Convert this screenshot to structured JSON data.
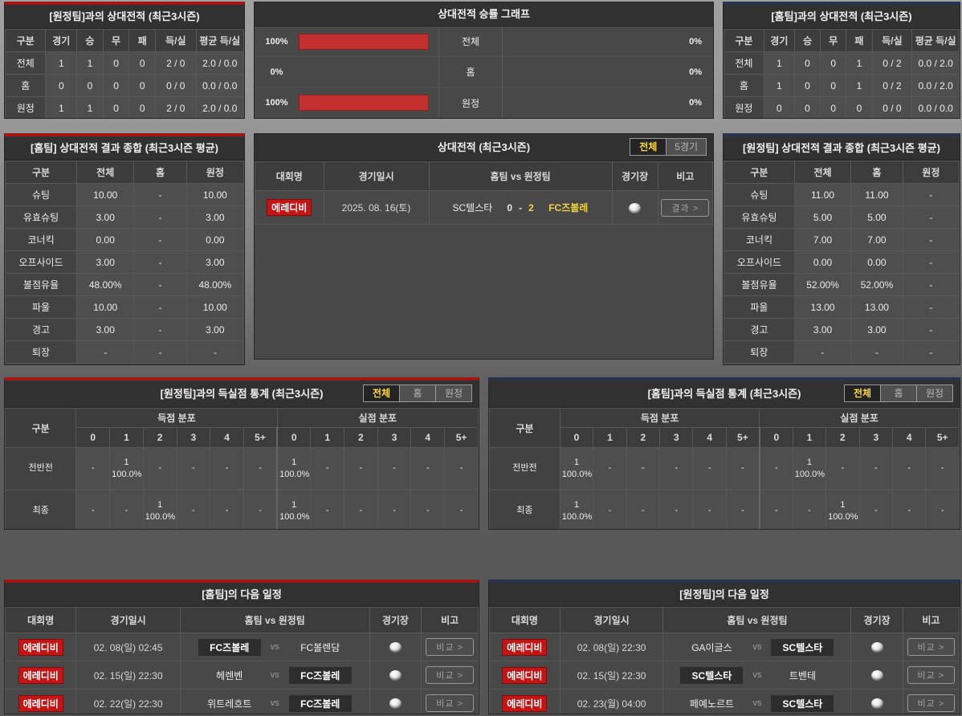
{
  "h2h_away": {
    "title": "[원정팀]과의 상대전적 (최근3시즌)",
    "headers": [
      "구분",
      "경기",
      "승",
      "무",
      "패",
      "득/실",
      "평균 득/실"
    ],
    "rows": [
      [
        "전체",
        "1",
        "1",
        "0",
        "0",
        "2 / 0",
        "2.0 / 0.0"
      ],
      [
        "홈",
        "0",
        "0",
        "0",
        "0",
        "0 / 0",
        "0.0 / 0.0"
      ],
      [
        "원정",
        "1",
        "1",
        "0",
        "0",
        "2 / 0",
        "2.0 / 0.0"
      ]
    ]
  },
  "win_graph": {
    "title": "상대전적 승률 그래프",
    "rows": [
      {
        "left_label": "100%",
        "left_width": "100",
        "label": "전체",
        "right_width": "0",
        "right_label": "0%"
      },
      {
        "left_label": "0%",
        "left_width": "0",
        "label": "홈",
        "right_width": "0",
        "right_label": "0%"
      },
      {
        "left_label": "100%",
        "left_width": "100",
        "label": "원정",
        "right_width": "0",
        "right_label": "0%"
      }
    ],
    "bar_color": "#c23030"
  },
  "h2h_home": {
    "title": "[홈팀]과의 상대전적 (최근3시즌)",
    "headers": [
      "구분",
      "경기",
      "승",
      "무",
      "패",
      "득/실",
      "평균 득/실"
    ],
    "rows": [
      [
        "전체",
        "1",
        "0",
        "0",
        "1",
        "0 / 2",
        "0.0 / 2.0"
      ],
      [
        "홈",
        "1",
        "0",
        "0",
        "1",
        "0 / 2",
        "0.0 / 2.0"
      ],
      [
        "원정",
        "0",
        "0",
        "0",
        "0",
        "0 / 0",
        "0.0 / 0.0"
      ]
    ]
  },
  "summary_home": {
    "title": "[홈팀] 상대전적 결과 종합 (최근3시즌 평균)",
    "headers": [
      "구분",
      "전체",
      "홈",
      "원정"
    ],
    "rows": [
      [
        "슈팅",
        "10.00",
        "-",
        "10.00"
      ],
      [
        "유효슈팅",
        "3.00",
        "-",
        "3.00"
      ],
      [
        "코너킥",
        "0.00",
        "-",
        "0.00"
      ],
      [
        "오프사이드",
        "3.00",
        "-",
        "3.00"
      ],
      [
        "볼점유율",
        "48.00%",
        "-",
        "48.00%"
      ],
      [
        "파울",
        "10.00",
        "-",
        "10.00"
      ],
      [
        "경고",
        "3.00",
        "-",
        "3.00"
      ],
      [
        "퇴장",
        "-",
        "-",
        "-"
      ]
    ]
  },
  "summary_away": {
    "title": "[원정팀] 상대전적 결과 종합 (최근3시즌 평균)",
    "headers": [
      "구분",
      "전체",
      "홈",
      "원정"
    ],
    "rows": [
      [
        "슈팅",
        "11.00",
        "11.00",
        "-"
      ],
      [
        "유효슈팅",
        "5.00",
        "5.00",
        "-"
      ],
      [
        "코너킥",
        "7.00",
        "7.00",
        "-"
      ],
      [
        "오프사이드",
        "0.00",
        "0.00",
        "-"
      ],
      [
        "볼점유율",
        "52.00%",
        "52.00%",
        "-"
      ],
      [
        "파울",
        "13.00",
        "13.00",
        "-"
      ],
      [
        "경고",
        "3.00",
        "3.00",
        "-"
      ],
      [
        "퇴장",
        "-",
        "-",
        "-"
      ]
    ]
  },
  "matches": {
    "title": "상대전적 (최근3시즌)",
    "tabs": [
      "전체",
      "5경기"
    ],
    "headers": [
      "대회명",
      "경기일시",
      "홈팀  vs  원정팀",
      "경기장",
      "비고"
    ],
    "row": {
      "league": "에레디비",
      "datetime": "2025. 08. 16(토)",
      "home": "SC텔스타",
      "home_score": "0",
      "score_sep": "-",
      "away_score": "2",
      "away": "FC즈볼레",
      "button": "결과 >"
    }
  },
  "goals_away": {
    "title": "[원정팀]과의 득실점 통계 (최근3시즌)",
    "tabs": [
      "전체",
      "홈",
      "원정"
    ],
    "col_label": "구분",
    "group_scored": "득점 분포",
    "group_conceded": "실점 분포",
    "bins": [
      "0",
      "1",
      "2",
      "3",
      "4",
      "5+",
      "0",
      "1",
      "2",
      "3",
      "4",
      "5+"
    ],
    "rows": [
      [
        "전반전",
        "-",
        "1\n100.0%",
        "-",
        "-",
        "-",
        "-",
        "1\n100.0%",
        "-",
        "-",
        "-",
        "-",
        "-"
      ],
      [
        "최종",
        "-",
        "-",
        "1\n100.0%",
        "-",
        "-",
        "-",
        "1\n100.0%",
        "-",
        "-",
        "-",
        "-",
        "-"
      ]
    ]
  },
  "goals_home": {
    "title": "[홈팀]과의 득실점 통계 (최근3시즌)",
    "tabs": [
      "전체",
      "홈",
      "원정"
    ],
    "col_label": "구분",
    "group_scored": "득점 분포",
    "group_conceded": "실점 분포",
    "bins": [
      "0",
      "1",
      "2",
      "3",
      "4",
      "5+",
      "0",
      "1",
      "2",
      "3",
      "4",
      "5+"
    ],
    "rows": [
      [
        "전반전",
        "1\n100.0%",
        "-",
        "-",
        "-",
        "-",
        "-",
        "-",
        "1\n100.0%",
        "-",
        "-",
        "-",
        "-"
      ],
      [
        "최종",
        "1\n100.0%",
        "-",
        "-",
        "-",
        "-",
        "-",
        "-",
        "-",
        "1\n100.0%",
        "-",
        "-",
        "-"
      ]
    ]
  },
  "schedule_home": {
    "title": "[홈팀]의 다음 일정",
    "headers": [
      "대회명",
      "경기일시",
      "홈팀  vs  원정팀",
      "경기장",
      "비고"
    ],
    "vs_label": "vs",
    "rows": [
      {
        "league": "에레디비",
        "datetime": "02. 08(일) 02:45",
        "home": "FC즈볼레",
        "away": "FC볼렌담",
        "highlight": "home",
        "button": "비교 >"
      },
      {
        "league": "에레디비",
        "datetime": "02. 15(일) 22:30",
        "home": "헤렌벤",
        "away": "FC즈볼레",
        "highlight": "away",
        "button": "비교 >"
      },
      {
        "league": "에레디비",
        "datetime": "02. 22(일) 22:30",
        "home": "위트레흐트",
        "away": "FC즈볼레",
        "highlight": "away",
        "button": "비교 >"
      }
    ]
  },
  "schedule_away": {
    "title": "[원정팀]의 다음 일정",
    "headers": [
      "대회명",
      "경기일시",
      "홈팀  vs  원정팀",
      "경기장",
      "비고"
    ],
    "vs_label": "vs",
    "rows": [
      {
        "league": "에레디비",
        "datetime": "02. 08(일) 22:30",
        "home": "GA이글스",
        "away": "SC텔스타",
        "highlight": "away",
        "button": "비교 >"
      },
      {
        "league": "에레디비",
        "datetime": "02. 15(일) 22:30",
        "home": "SC텔스타",
        "away": "트벤테",
        "highlight": "home",
        "button": "비교 >"
      },
      {
        "league": "에레디비",
        "datetime": "02. 23(월) 04:00",
        "home": "페예노르트",
        "away": "SC텔스타",
        "highlight": "away",
        "button": "비교 >"
      }
    ]
  },
  "colors": {
    "accent_home_red": "#a31616",
    "accent_away_navy": "#28334f",
    "badge_red": "#c41414",
    "bar_red": "#c23030",
    "highlight_yellow": "#f1d13f",
    "tab_active_yellow": "#ffd83d"
  }
}
